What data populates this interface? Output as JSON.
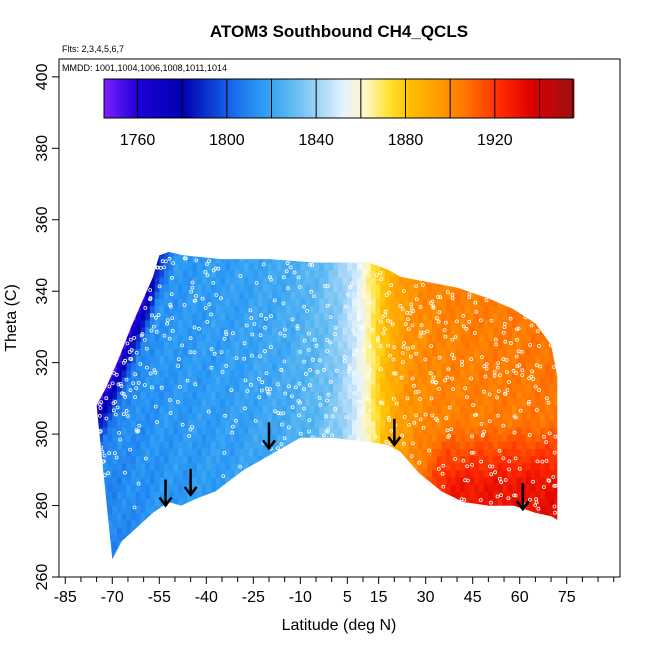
{
  "chart_data": {
    "type": "heatmap",
    "title": "ATOM3 Southbound CH4_QCLS",
    "flights_note": "Flts: 2,3,4,5,6,7",
    "dates_note": "MMDD: 1001,1004,1006,1008,1011,1014",
    "xlabel": "Latitude (deg N)",
    "ylabel": "Theta (C)",
    "xlim": [
      -87,
      92
    ],
    "ylim": [
      260,
      405
    ],
    "x_ticks": [
      -85,
      -70,
      -55,
      -40,
      -25,
      -10,
      5,
      15,
      30,
      45,
      60,
      75
    ],
    "y_ticks": [
      260,
      280,
      300,
      320,
      340,
      360,
      380,
      400
    ],
    "colorbar": {
      "range": [
        1745,
        1955
      ],
      "tick_values": [
        1760,
        1800,
        1840,
        1880,
        1920
      ],
      "boundaries": [
        1745,
        1760,
        1780,
        1800,
        1820,
        1840,
        1860,
        1880,
        1900,
        1920,
        1940,
        1955
      ]
    },
    "colormap": [
      [
        1745,
        "#7a1fff"
      ],
      [
        1760,
        "#1b00d6"
      ],
      [
        1780,
        "#0000b0"
      ],
      [
        1800,
        "#1560e8"
      ],
      [
        1815,
        "#2a9af5"
      ],
      [
        1828,
        "#5ab8f2"
      ],
      [
        1840,
        "#9fd3f7"
      ],
      [
        1852,
        "#e6f3ff"
      ],
      [
        1862,
        "#fff6c0"
      ],
      [
        1872,
        "#ffe233"
      ],
      [
        1882,
        "#ffbd00"
      ],
      [
        1895,
        "#ff9c00"
      ],
      [
        1908,
        "#ff6e00"
      ],
      [
        1922,
        "#ff2a00"
      ],
      [
        1936,
        "#dd0000"
      ],
      [
        1955,
        "#9b1010"
      ]
    ],
    "field_model": {
      "lat_anchors": [
        -70,
        -55,
        -40,
        -28,
        -15,
        -5,
        2,
        8,
        13,
        16,
        20,
        25,
        35,
        50,
        70
      ],
      "base_values": [
        1810,
        1814,
        1816,
        1818,
        1822,
        1828,
        1836,
        1850,
        1868,
        1880,
        1890,
        1898,
        1902,
        1904,
        1906
      ],
      "low_theta_enhancement_NH": 25,
      "southern_upper_edge_depletion": 55
    },
    "coverage": {
      "bottom_boundary": [
        [
          -70,
          265
        ],
        [
          -67,
          270
        ],
        [
          -62,
          274
        ],
        [
          -57,
          278
        ],
        [
          -52,
          281
        ],
        [
          -48,
          280
        ],
        [
          -43,
          282
        ],
        [
          -37,
          284
        ],
        [
          -28,
          290
        ],
        [
          -18,
          295
        ],
        [
          -10,
          299
        ],
        [
          0,
          299
        ],
        [
          10,
          298
        ],
        [
          18,
          297
        ],
        [
          22,
          295
        ],
        [
          28,
          289
        ],
        [
          35,
          284
        ],
        [
          42,
          281
        ],
        [
          50,
          280
        ],
        [
          58,
          280
        ],
        [
          65,
          278
        ],
        [
          70,
          277
        ],
        [
          72,
          276
        ]
      ],
      "top_boundary": [
        [
          -75,
          308
        ],
        [
          -72,
          313
        ],
        [
          -68,
          321
        ],
        [
          -64,
          330
        ],
        [
          -60,
          338
        ],
        [
          -57,
          344
        ],
        [
          -55,
          350
        ],
        [
          -52,
          351
        ],
        [
          -47,
          350
        ],
        [
          -35,
          349
        ],
        [
          -20,
          349
        ],
        [
          -5,
          348
        ],
        [
          5,
          348
        ],
        [
          12,
          348
        ],
        [
          18,
          346
        ],
        [
          22,
          344
        ],
        [
          28,
          343
        ],
        [
          40,
          341
        ],
        [
          50,
          338
        ],
        [
          58,
          335
        ],
        [
          65,
          331
        ],
        [
          70,
          325
        ],
        [
          72,
          316
        ]
      ]
    },
    "arrows": [
      {
        "lat": -53,
        "theta_tip": 280
      },
      {
        "lat": -45,
        "theta_tip": 283
      },
      {
        "lat": -20,
        "theta_tip": 296
      },
      {
        "lat": 20,
        "theta_tip": 297
      },
      {
        "lat": 61,
        "theta_tip": 279
      }
    ]
  }
}
